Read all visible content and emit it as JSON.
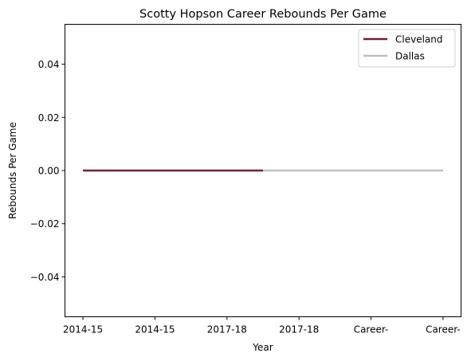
{
  "chart_data": {
    "type": "line",
    "title": "Scotty Hopson Career Rebounds Per Game",
    "xlabel": "Year",
    "ylabel": "Rebounds Per Game",
    "x_tick_labels": [
      "2014-15",
      "2014-15",
      "2017-18",
      "2017-18",
      "Career-",
      "Career-"
    ],
    "y_ticks": [
      "0.04",
      "0.02",
      "0.00",
      "−0.02",
      "−0.04"
    ],
    "y_tick_values": [
      0.04,
      0.02,
      0.0,
      -0.02,
      -0.04
    ],
    "xlim": [
      -0.25,
      5.25
    ],
    "ylim": [
      -0.055,
      0.055
    ],
    "grid": false,
    "legend_position": "top-right",
    "series": [
      {
        "name": "Cleveland",
        "color": "#6b2437",
        "x": [
          0,
          1,
          2,
          2.5
        ],
        "values": [
          0,
          0,
          0,
          0
        ]
      },
      {
        "name": "Dallas",
        "color": "#c0c0c0",
        "x": [
          2.5,
          3,
          4,
          5
        ],
        "values": [
          0,
          0,
          0,
          0
        ]
      }
    ]
  }
}
